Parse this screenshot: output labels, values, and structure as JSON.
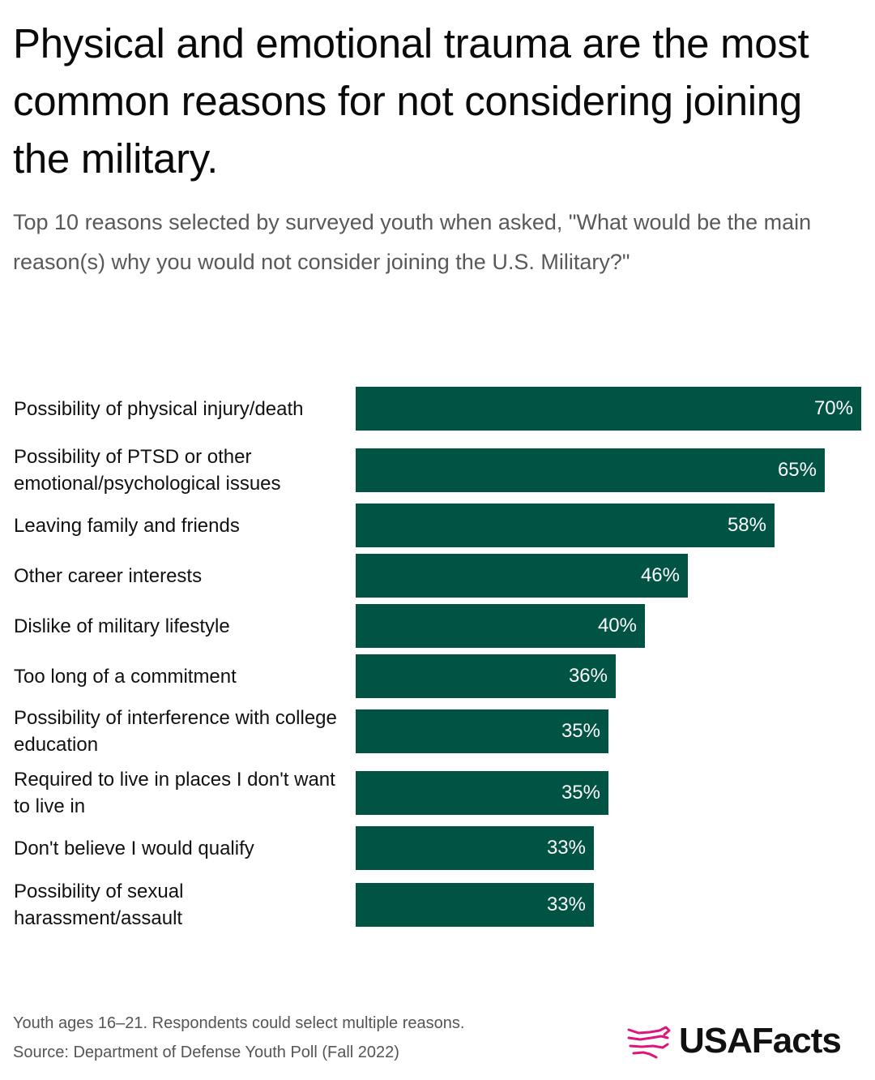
{
  "title": "Physical and emotional trauma are the most common reasons for not considering joining the military.",
  "subtitle": "Top 10 reasons selected by surveyed youth when asked, \"What would be the main reason(s) why you would not consider joining the U.S. Military?\"",
  "footer": {
    "note": "Youth ages 16–21. Respondents could select multiple reasons.",
    "source": "Source: Department of Defense Youth Poll (Fall 2022)"
  },
  "logo": {
    "text": "USAFacts",
    "icon": "usa-flag-map-icon",
    "icon_color": "#e0157a"
  },
  "colors": {
    "bar": "#015443",
    "bar_label": "#ffffff"
  },
  "chart_data": {
    "type": "bar",
    "orientation": "horizontal",
    "categories": [
      "Possibility of physical injury/death",
      "Possibility of PTSD or other emotional/psychological issues",
      "Leaving family and friends",
      "Other career interests",
      "Dislike of military lifestyle",
      "Too long of a commitment",
      "Possibility of interference with college education",
      "Required to live in places I don't want to live in",
      "Don't believe I would qualify",
      "Possibility of sexual harassment/assault"
    ],
    "values": [
      70,
      65,
      58,
      46,
      40,
      36,
      35,
      35,
      33,
      33
    ],
    "value_labels": [
      "70%",
      "65%",
      "58%",
      "46%",
      "40%",
      "36%",
      "35%",
      "35%",
      "33%",
      "33%"
    ],
    "xlim": [
      0,
      70
    ],
    "grid": false
  }
}
